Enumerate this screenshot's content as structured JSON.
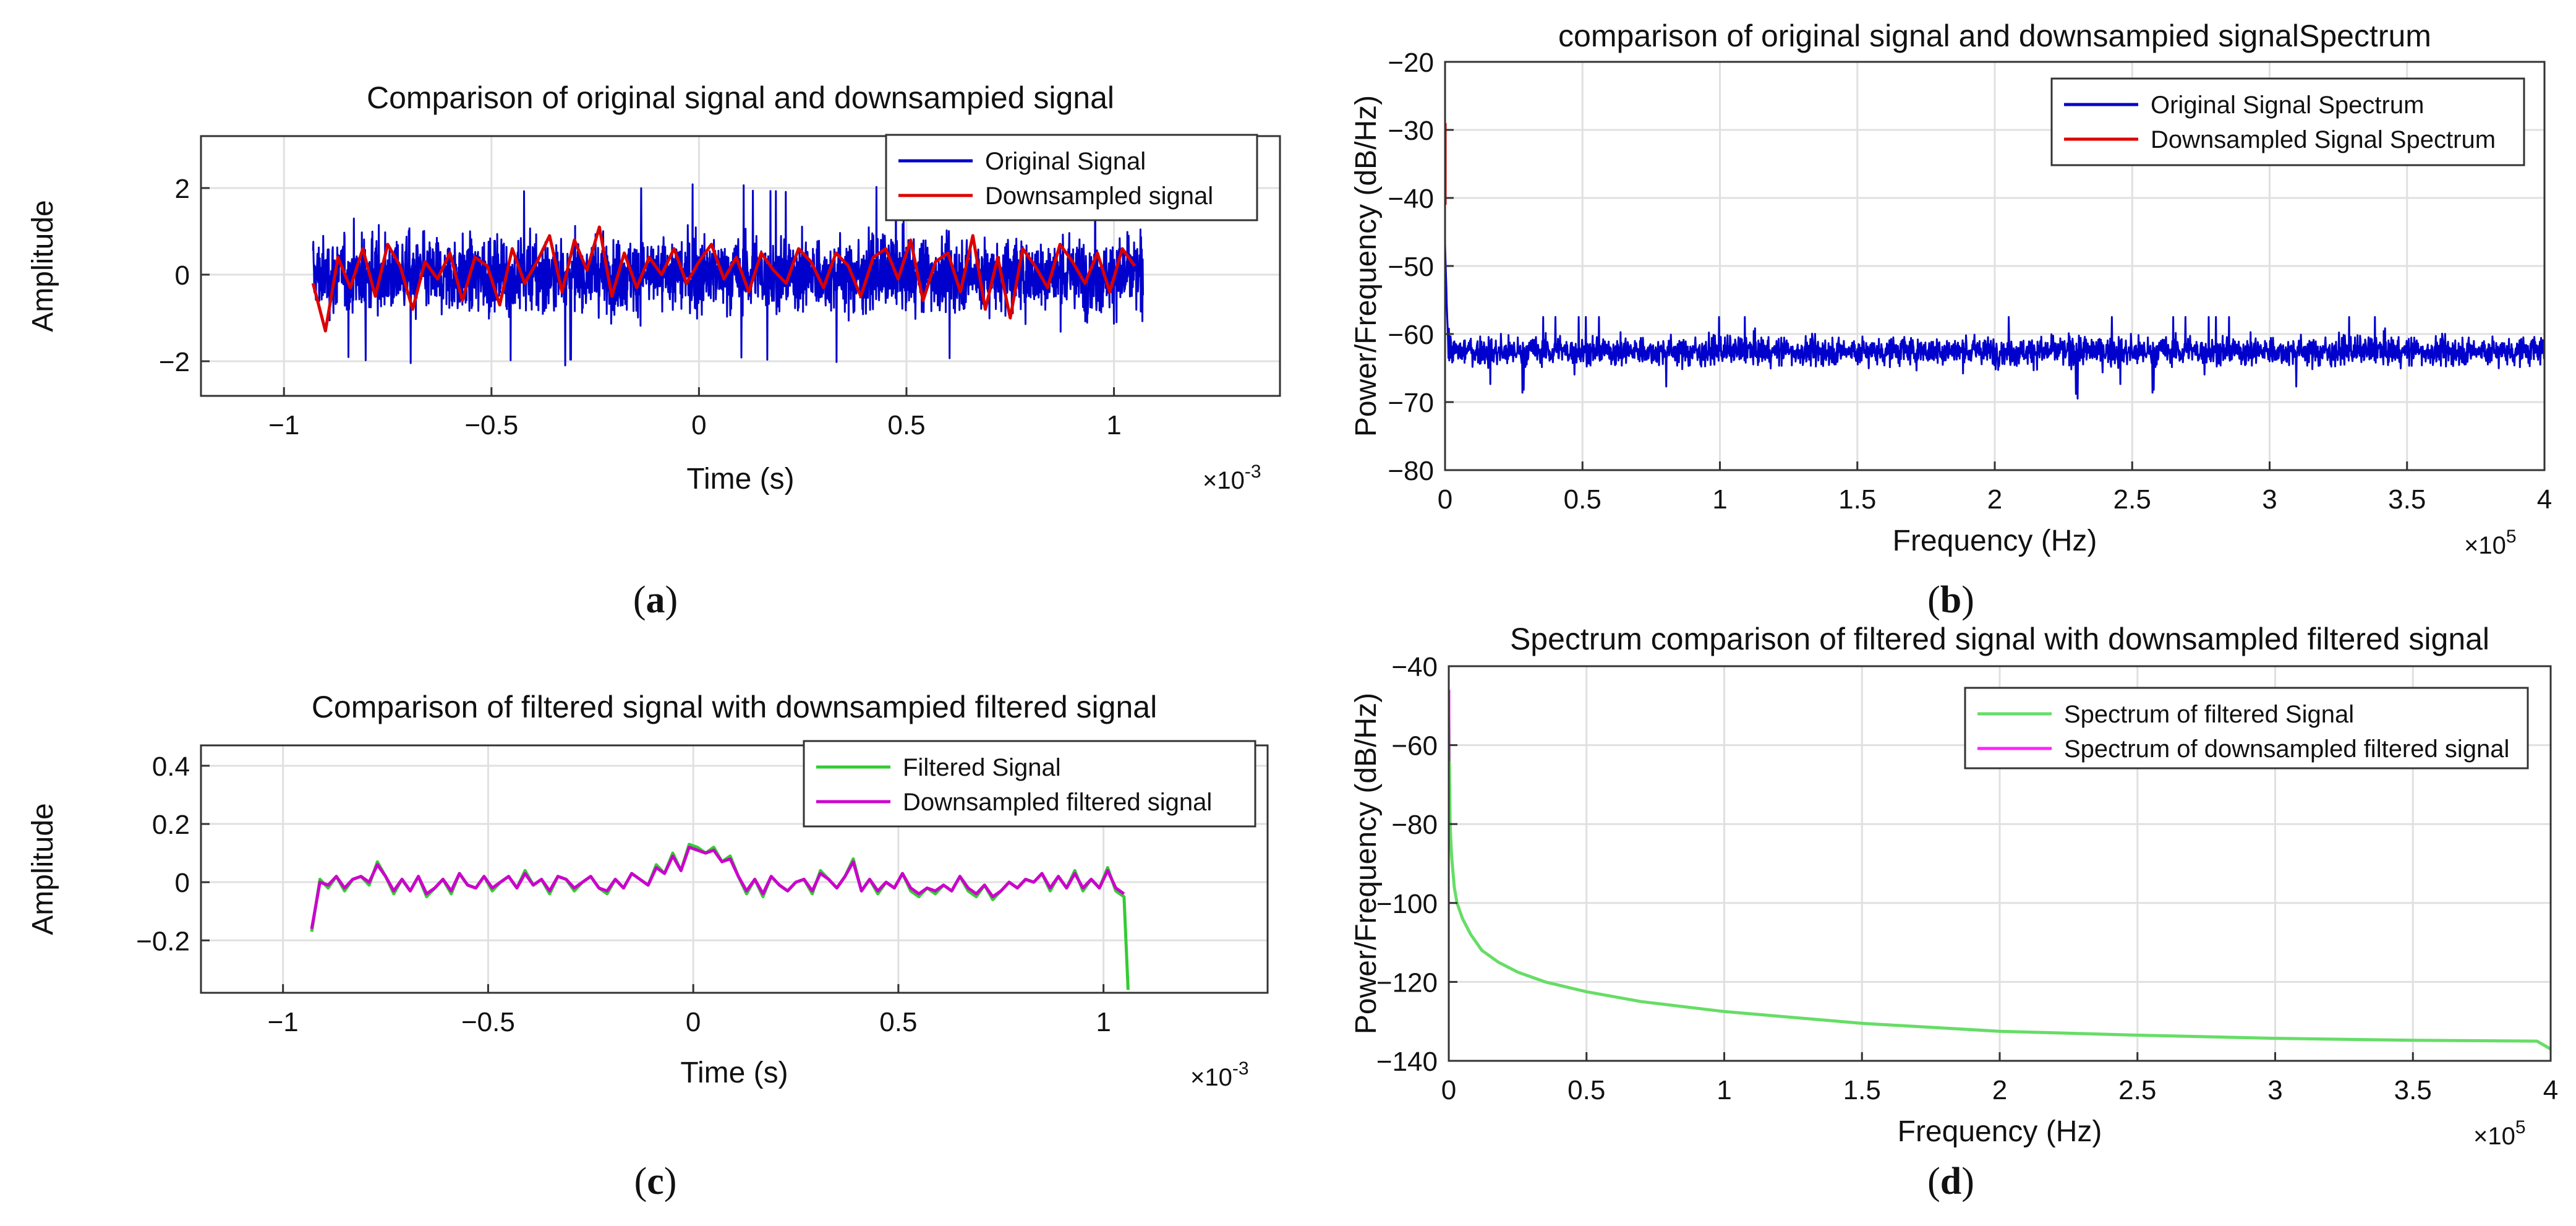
{
  "figure": {
    "panels": [
      {
        "id": "a",
        "label": "(a)",
        "title": "Comparison of original signal and downsampied signal",
        "xlabel": "Time (s)",
        "ylabel": "Amplitude",
        "xexp": "-3",
        "xticks": [
          "−1",
          "−0.5",
          "0",
          "0.5",
          "1"
        ],
        "yticks": [
          "−2",
          "0",
          "2"
        ],
        "legend": [
          "Original Signal",
          "Downsampled signal"
        ]
      },
      {
        "id": "b",
        "label": "(b)",
        "title": "comparison of original signal and downsampied signalSpectrum",
        "xlabel": "Frequency (Hz)",
        "ylabel": "Power/Frequency (dB/Hz)",
        "xexp": "5",
        "xticks": [
          "0",
          "0.5",
          "1",
          "1.5",
          "2",
          "2.5",
          "3",
          "3.5",
          "4"
        ],
        "yticks": [
          "−80",
          "−70",
          "−60",
          "−50",
          "−40",
          "−30",
          "−20"
        ],
        "legend": [
          "Original Signal Spectrum",
          "Downsampled Signal Spectrum"
        ]
      },
      {
        "id": "c",
        "label": "(c)",
        "title": "Comparison of filtered signal with downsampied filtered signal",
        "xlabel": "Time (s)",
        "ylabel": "Amplitude",
        "xexp": "-3",
        "xticks": [
          "−1",
          "−0.5",
          "0",
          "0.5",
          "1"
        ],
        "yticks": [
          "−0.2",
          "0",
          "0.2",
          "0.4"
        ],
        "legend": [
          "Filtered Signal",
          "Downsampled filtered signal"
        ]
      },
      {
        "id": "d",
        "label": "(d)",
        "title": "Spectrum comparison of filtered signal with downsampled filtered signal",
        "xlabel": "Frequency (Hz)",
        "ylabel": "Power/Frequency (dB/Hz)",
        "xexp": "5",
        "xticks": [
          "0",
          "0.5",
          "1",
          "1.5",
          "2",
          "2.5",
          "3",
          "3.5",
          "4"
        ],
        "yticks": [
          "−140",
          "−120",
          "−100",
          "−80",
          "−60",
          "−40"
        ],
        "legend": [
          "Spectrum of filtered Signal",
          "Spectrum of downsampled filtered signal"
        ]
      }
    ],
    "x10": "×10"
  },
  "chart_data": [
    {
      "type": "line",
      "title": "Comparison of original signal and downsampied signal",
      "xlabel": "Time (s)",
      "ylabel": "Amplitude",
      "x_scale": "×10^-3",
      "xlim": [
        -1.2,
        1.4
      ],
      "ylim": [
        -2.8,
        3.2
      ],
      "grid": true,
      "legend_position": "top-right",
      "series": [
        {
          "name": "Original Signal",
          "color": "#0000cc",
          "x_range": [
            -0.93,
            1.07
          ],
          "y_band": [
            -1.4,
            1.4
          ],
          "y_extremes": [
            -2.1,
            2.1
          ]
        },
        {
          "name": "Downsampled signal",
          "color": "#dd0000",
          "x": [
            -0.93,
            -0.9,
            -0.87,
            -0.84,
            -0.81,
            -0.78,
            -0.75,
            -0.72,
            -0.69,
            -0.66,
            -0.63,
            -0.6,
            -0.57,
            -0.54,
            -0.51,
            -0.48,
            -0.45,
            -0.42,
            -0.39,
            -0.36,
            -0.33,
            -0.3,
            -0.27,
            -0.24,
            -0.21,
            -0.18,
            -0.15,
            -0.12,
            -0.09,
            -0.06,
            -0.03,
            0.0,
            0.03,
            0.06,
            0.09,
            0.12,
            0.15,
            0.18,
            0.21,
            0.24,
            0.27,
            0.3,
            0.33,
            0.36,
            0.39,
            0.42,
            0.45,
            0.48,
            0.51,
            0.54,
            0.57,
            0.6,
            0.63,
            0.66,
            0.69,
            0.72,
            0.75,
            0.78,
            0.81,
            0.84,
            0.87,
            0.9,
            0.93,
            0.96,
            0.99,
            1.02,
            1.05
          ],
          "y": [
            -0.2,
            -1.3,
            0.4,
            -0.3,
            0.6,
            -0.5,
            0.7,
            0.2,
            -0.8,
            0.3,
            -0.1,
            0.5,
            -0.6,
            0.4,
            0.2,
            -0.7,
            0.6,
            -0.2,
            0.3,
            0.9,
            -0.4,
            0.8,
            0.1,
            1.1,
            -0.5,
            0.5,
            -0.3,
            0.4,
            0.0,
            0.6,
            -0.2,
            0.3,
            0.7,
            -0.1,
            0.4,
            -0.4,
            0.5,
            0.1,
            -0.2,
            0.6,
            0.3,
            -0.3,
            0.5,
            0.2,
            -0.5,
            0.4,
            0.6,
            -0.1,
            0.8,
            -0.6,
            0.3,
            0.5,
            -0.4,
            0.9,
            -0.8,
            0.4,
            -1.0,
            0.6,
            0.2,
            -0.3,
            0.7,
            0.3,
            -0.2,
            0.5,
            -0.4,
            0.6,
            0.2
          ]
        }
      ]
    },
    {
      "type": "line",
      "title": "comparison of original signal and downsampied signalSpectrum",
      "xlabel": "Frequency (Hz)",
      "ylabel": "Power/Frequency (dB/Hz)",
      "x_scale": "×10^5",
      "xlim": [
        0,
        4
      ],
      "ylim": [
        -80,
        -20
      ],
      "grid": true,
      "legend_position": "top-right",
      "series": [
        {
          "name": "Original Signal Spectrum",
          "color": "#0000cc",
          "x_range": [
            0,
            4
          ],
          "y_band": [
            -66,
            -59
          ],
          "y_extremes": [
            -70.5,
            -57.5
          ],
          "peak_at_0": -47
        },
        {
          "name": "Downsampled Signal Spectrum",
          "color": "#dd0000",
          "x": [
            0.0,
            0.0
          ],
          "y": [
            -41,
            -29
          ]
        }
      ]
    },
    {
      "type": "line",
      "title": "Comparison of filtered signal with downsampied filtered signal",
      "xlabel": "Time (s)",
      "ylabel": "Amplitude",
      "x_scale": "×10^-3",
      "xlim": [
        -1.2,
        1.4
      ],
      "ylim": [
        -0.38,
        0.47
      ],
      "grid": true,
      "legend_position": "top-right",
      "series": [
        {
          "name": "Filtered Signal",
          "color": "#33cc33",
          "x": [
            -0.93,
            -0.91,
            -0.89,
            -0.87,
            -0.85,
            -0.83,
            -0.81,
            -0.79,
            -0.77,
            -0.75,
            -0.73,
            -0.71,
            -0.69,
            -0.67,
            -0.65,
            -0.63,
            -0.61,
            -0.59,
            -0.57,
            -0.55,
            -0.53,
            -0.51,
            -0.49,
            -0.47,
            -0.45,
            -0.43,
            -0.41,
            -0.39,
            -0.37,
            -0.35,
            -0.33,
            -0.31,
            -0.29,
            -0.27,
            -0.25,
            -0.23,
            -0.21,
            -0.19,
            -0.17,
            -0.15,
            -0.13,
            -0.11,
            -0.09,
            -0.07,
            -0.05,
            -0.03,
            -0.01,
            0.01,
            0.03,
            0.05,
            0.07,
            0.09,
            0.11,
            0.13,
            0.15,
            0.17,
            0.19,
            0.21,
            0.23,
            0.25,
            0.27,
            0.29,
            0.31,
            0.33,
            0.35,
            0.37,
            0.39,
            0.41,
            0.43,
            0.45,
            0.47,
            0.49,
            0.51,
            0.53,
            0.55,
            0.57,
            0.59,
            0.61,
            0.63,
            0.65,
            0.67,
            0.69,
            0.71,
            0.73,
            0.75,
            0.77,
            0.79,
            0.81,
            0.83,
            0.85,
            0.87,
            0.89,
            0.91,
            0.93,
            0.95,
            0.97,
            0.99,
            1.01,
            1.03,
            1.05,
            1.06
          ],
          "y": [
            -0.17,
            0.01,
            -0.02,
            0.02,
            -0.03,
            0.01,
            0.02,
            -0.01,
            0.07,
            0.02,
            -0.04,
            0.01,
            -0.03,
            0.02,
            -0.05,
            -0.02,
            0.01,
            -0.04,
            0.03,
            -0.01,
            -0.02,
            0.02,
            -0.03,
            0.0,
            0.02,
            -0.02,
            0.04,
            -0.01,
            0.01,
            -0.04,
            0.02,
            0.01,
            -0.03,
            0.0,
            0.02,
            -0.02,
            -0.04,
            0.01,
            -0.02,
            0.03,
            0.01,
            -0.01,
            0.06,
            0.03,
            0.1,
            0.04,
            0.13,
            0.12,
            0.1,
            0.12,
            0.07,
            0.09,
            0.02,
            -0.04,
            0.01,
            -0.05,
            0.02,
            -0.01,
            -0.03,
            0.0,
            0.01,
            -0.04,
            0.04,
            0.01,
            -0.02,
            0.02,
            0.08,
            -0.03,
            0.01,
            -0.04,
            0.0,
            -0.02,
            0.03,
            -0.03,
            -0.05,
            -0.02,
            -0.04,
            -0.01,
            -0.03,
            0.02,
            -0.03,
            -0.05,
            -0.01,
            -0.06,
            -0.03,
            0.0,
            -0.02,
            0.01,
            0.0,
            0.03,
            -0.03,
            0.02,
            -0.02,
            0.04,
            -0.03,
            0.01,
            -0.02,
            0.05,
            -0.03,
            -0.05,
            -0.37
          ]
        },
        {
          "name": "Downsampled filtered signal",
          "color": "#cc00cc",
          "x": [
            -0.93,
            -0.91,
            -0.89,
            -0.87,
            -0.85,
            -0.83,
            -0.81,
            -0.79,
            -0.77,
            -0.75,
            -0.73,
            -0.71,
            -0.69,
            -0.67,
            -0.65,
            -0.63,
            -0.61,
            -0.59,
            -0.57,
            -0.55,
            -0.53,
            -0.51,
            -0.49,
            -0.47,
            -0.45,
            -0.43,
            -0.41,
            -0.39,
            -0.37,
            -0.35,
            -0.33,
            -0.31,
            -0.29,
            -0.27,
            -0.25,
            -0.23,
            -0.21,
            -0.19,
            -0.17,
            -0.15,
            -0.13,
            -0.11,
            -0.09,
            -0.07,
            -0.05,
            -0.03,
            -0.01,
            0.01,
            0.03,
            0.05,
            0.07,
            0.09,
            0.11,
            0.13,
            0.15,
            0.17,
            0.19,
            0.21,
            0.23,
            0.25,
            0.27,
            0.29,
            0.31,
            0.33,
            0.35,
            0.37,
            0.39,
            0.41,
            0.43,
            0.45,
            0.47,
            0.49,
            0.51,
            0.53,
            0.55,
            0.57,
            0.59,
            0.61,
            0.63,
            0.65,
            0.67,
            0.69,
            0.71,
            0.73,
            0.75,
            0.77,
            0.79,
            0.81,
            0.83,
            0.85,
            0.87,
            0.89,
            0.91,
            0.93,
            0.95,
            0.97,
            0.99,
            1.01,
            1.03,
            1.05
          ],
          "y": [
            -0.16,
            0.0,
            -0.01,
            0.02,
            -0.02,
            0.01,
            0.02,
            0.0,
            0.06,
            0.02,
            -0.03,
            0.01,
            -0.03,
            0.02,
            -0.04,
            -0.02,
            0.01,
            -0.03,
            0.03,
            -0.01,
            -0.02,
            0.02,
            -0.02,
            0.0,
            0.02,
            -0.02,
            0.03,
            -0.01,
            0.01,
            -0.03,
            0.02,
            0.01,
            -0.02,
            0.0,
            0.02,
            -0.02,
            -0.03,
            0.01,
            -0.02,
            0.03,
            0.01,
            -0.01,
            0.05,
            0.03,
            0.09,
            0.04,
            0.12,
            0.11,
            0.1,
            0.11,
            0.07,
            0.08,
            0.02,
            -0.03,
            0.01,
            -0.04,
            0.02,
            -0.01,
            -0.03,
            0.0,
            0.01,
            -0.03,
            0.03,
            0.01,
            -0.02,
            0.02,
            0.07,
            -0.03,
            0.01,
            -0.03,
            0.0,
            -0.02,
            0.03,
            -0.02,
            -0.04,
            -0.02,
            -0.03,
            -0.01,
            -0.03,
            0.02,
            -0.02,
            -0.04,
            -0.01,
            -0.05,
            -0.03,
            0.0,
            -0.02,
            0.01,
            0.0,
            0.03,
            -0.02,
            0.02,
            -0.02,
            0.03,
            -0.02,
            0.01,
            -0.02,
            0.04,
            -0.02,
            -0.04
          ]
        }
      ]
    },
    {
      "type": "line",
      "title": "Spectrum comparison of filtered signal with downsampled filtered signal",
      "xlabel": "Frequency (Hz)",
      "ylabel": "Power/Frequency (dB/Hz)",
      "x_scale": "×10^5",
      "xlim": [
        0,
        4
      ],
      "ylim": [
        -140,
        -40
      ],
      "grid": true,
      "legend_position": "top-right",
      "series": [
        {
          "name": "Spectrum of filtered Signal",
          "color": "#66dd66",
          "x": [
            0.0,
            0.005,
            0.01,
            0.02,
            0.03,
            0.05,
            0.08,
            0.12,
            0.18,
            0.25,
            0.35,
            0.5,
            0.7,
            1.0,
            1.5,
            2.0,
            2.5,
            3.0,
            3.5,
            3.95,
            4.0
          ],
          "y": [
            -52,
            -80,
            -88,
            -96,
            -100,
            -104,
            -108,
            -112,
            -115,
            -117.5,
            -120,
            -122.5,
            -125,
            -127.5,
            -130.5,
            -132.5,
            -133.5,
            -134.3,
            -134.8,
            -135,
            -137
          ]
        },
        {
          "name": "Spectrum of downsampled filtered signal",
          "color": "#ff22ff",
          "x": [
            0.0,
            0.0
          ],
          "y": [
            -64,
            -46
          ]
        }
      ]
    }
  ]
}
